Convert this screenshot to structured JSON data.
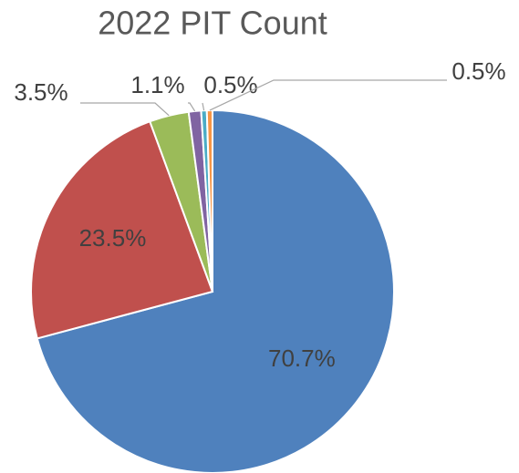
{
  "chart_data": {
    "type": "pie",
    "title": "2022 PIT Count",
    "values": [
      70.7,
      23.5,
      3.5,
      1.1,
      0.5,
      0.5
    ],
    "value_labels": [
      "70.7%",
      "23.5%",
      "3.5%",
      "1.1%",
      "0.5%",
      "0.5%"
    ],
    "colors": [
      "#4f81bd",
      "#c0504d",
      "#9bbb59",
      "#8064a2",
      "#4bacc6",
      "#f79646"
    ]
  }
}
